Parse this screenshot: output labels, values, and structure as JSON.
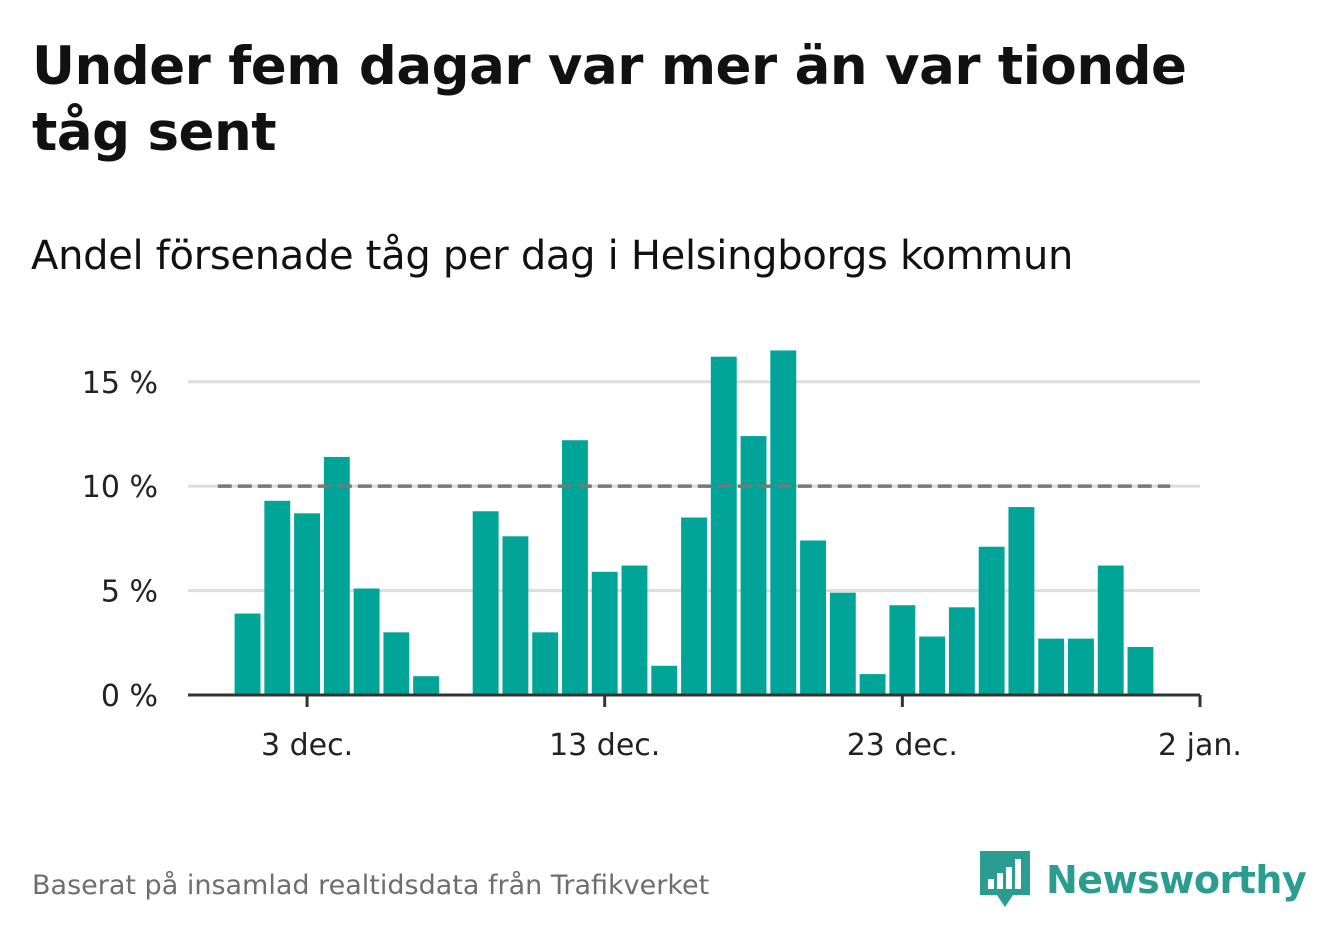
{
  "title": "Under fem dagar var mer än var tionde tåg sent",
  "subtitle": "Andel försenade tåg per dag i Helsingborgs kommun",
  "source": "Baserat på insamlad realtidsdata från Trafikverket",
  "brand": {
    "name": "Newsworthy",
    "logo_icon": "bar-chart-speech-bubble-icon"
  },
  "colors": {
    "bar": "#00a598",
    "reference_line": "#77777c",
    "grid": "#dddddd",
    "axis": "#333333",
    "brand": "#2a9d90"
  },
  "chart_data": {
    "type": "bar",
    "title": "Under fem dagar var mer än var tionde tåg sent",
    "subtitle": "Andel försenade tåg per dag i Helsingborgs kommun",
    "xlabel": "",
    "ylabel": "",
    "x_type": "date",
    "xlim": [
      "2018-11-29",
      "2019-01-02"
    ],
    "ylim": [
      0,
      17
    ],
    "y_ticks": [
      0,
      5,
      10,
      15
    ],
    "y_tick_labels": [
      "0 %",
      "5 %",
      "10 %",
      "15 %"
    ],
    "x_ticks": [
      "2018-12-03",
      "2018-12-13",
      "2018-12-23",
      "2019-01-02"
    ],
    "x_tick_labels": [
      "3 dec.",
      "13 dec.",
      "23 dec.",
      "2 jan."
    ],
    "grid": true,
    "reference_line": {
      "y": 10,
      "style": "dashed",
      "x_start": "2018-11-30",
      "x_end": "2019-01-01"
    },
    "points": [
      {
        "date": "2018-12-01",
        "value": 3.9
      },
      {
        "date": "2018-12-02",
        "value": 9.3
      },
      {
        "date": "2018-12-03",
        "value": 8.7
      },
      {
        "date": "2018-12-04",
        "value": 11.4
      },
      {
        "date": "2018-12-05",
        "value": 5.1
      },
      {
        "date": "2018-12-06",
        "value": 3.0
      },
      {
        "date": "2018-12-07",
        "value": 0.9
      },
      {
        "date": "2018-12-09",
        "value": 8.8
      },
      {
        "date": "2018-12-10",
        "value": 7.6
      },
      {
        "date": "2018-12-11",
        "value": 3.0
      },
      {
        "date": "2018-12-12",
        "value": 12.2
      },
      {
        "date": "2018-12-13",
        "value": 5.9
      },
      {
        "date": "2018-12-14",
        "value": 6.2
      },
      {
        "date": "2018-12-15",
        "value": 1.4
      },
      {
        "date": "2018-12-16",
        "value": 8.5
      },
      {
        "date": "2018-12-17",
        "value": 16.2
      },
      {
        "date": "2018-12-18",
        "value": 12.4
      },
      {
        "date": "2018-12-19",
        "value": 16.5
      },
      {
        "date": "2018-12-20",
        "value": 7.4
      },
      {
        "date": "2018-12-21",
        "value": 4.9
      },
      {
        "date": "2018-12-22",
        "value": 1.0
      },
      {
        "date": "2018-12-23",
        "value": 4.3
      },
      {
        "date": "2018-12-24",
        "value": 2.8
      },
      {
        "date": "2018-12-25",
        "value": 4.2
      },
      {
        "date": "2018-12-26",
        "value": 7.1
      },
      {
        "date": "2018-12-27",
        "value": 9.0
      },
      {
        "date": "2018-12-28",
        "value": 2.7
      },
      {
        "date": "2018-12-29",
        "value": 2.7
      },
      {
        "date": "2018-12-30",
        "value": 6.2
      },
      {
        "date": "2018-12-31",
        "value": 2.3
      }
    ]
  }
}
